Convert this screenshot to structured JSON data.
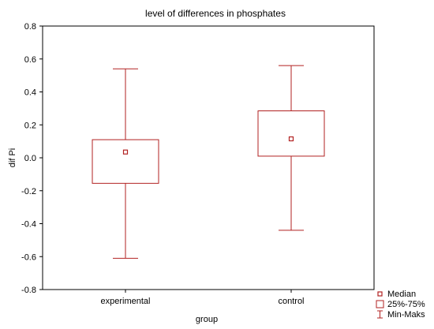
{
  "chart_data": {
    "type": "box",
    "title": "level of differences in phosphates",
    "xlabel": "group",
    "ylabel": "dif Pi",
    "ylim": [
      -0.8,
      0.8
    ],
    "yticks": [
      "0.8",
      "0.6",
      "0.4",
      "0.2",
      "0.0",
      "-0.2",
      "-0.4",
      "-0.6",
      "-0.8"
    ],
    "yticks_values": [
      0.8,
      0.6,
      0.4,
      0.2,
      0.0,
      -0.2,
      -0.4,
      -0.6,
      -0.8
    ],
    "categories": [
      "experimental",
      "control"
    ],
    "boxes": [
      {
        "category": "experimental",
        "min": -0.61,
        "q1": -0.155,
        "median": 0.035,
        "q3": 0.11,
        "max": 0.54
      },
      {
        "category": "control",
        "min": -0.44,
        "q1": 0.01,
        "median": 0.115,
        "q3": 0.285,
        "max": 0.56
      }
    ],
    "legend": {
      "position": "bottom-right",
      "items": [
        "Median",
        "25%-75%",
        "Min-Maks"
      ]
    },
    "grid": false,
    "color": "#b22222"
  }
}
